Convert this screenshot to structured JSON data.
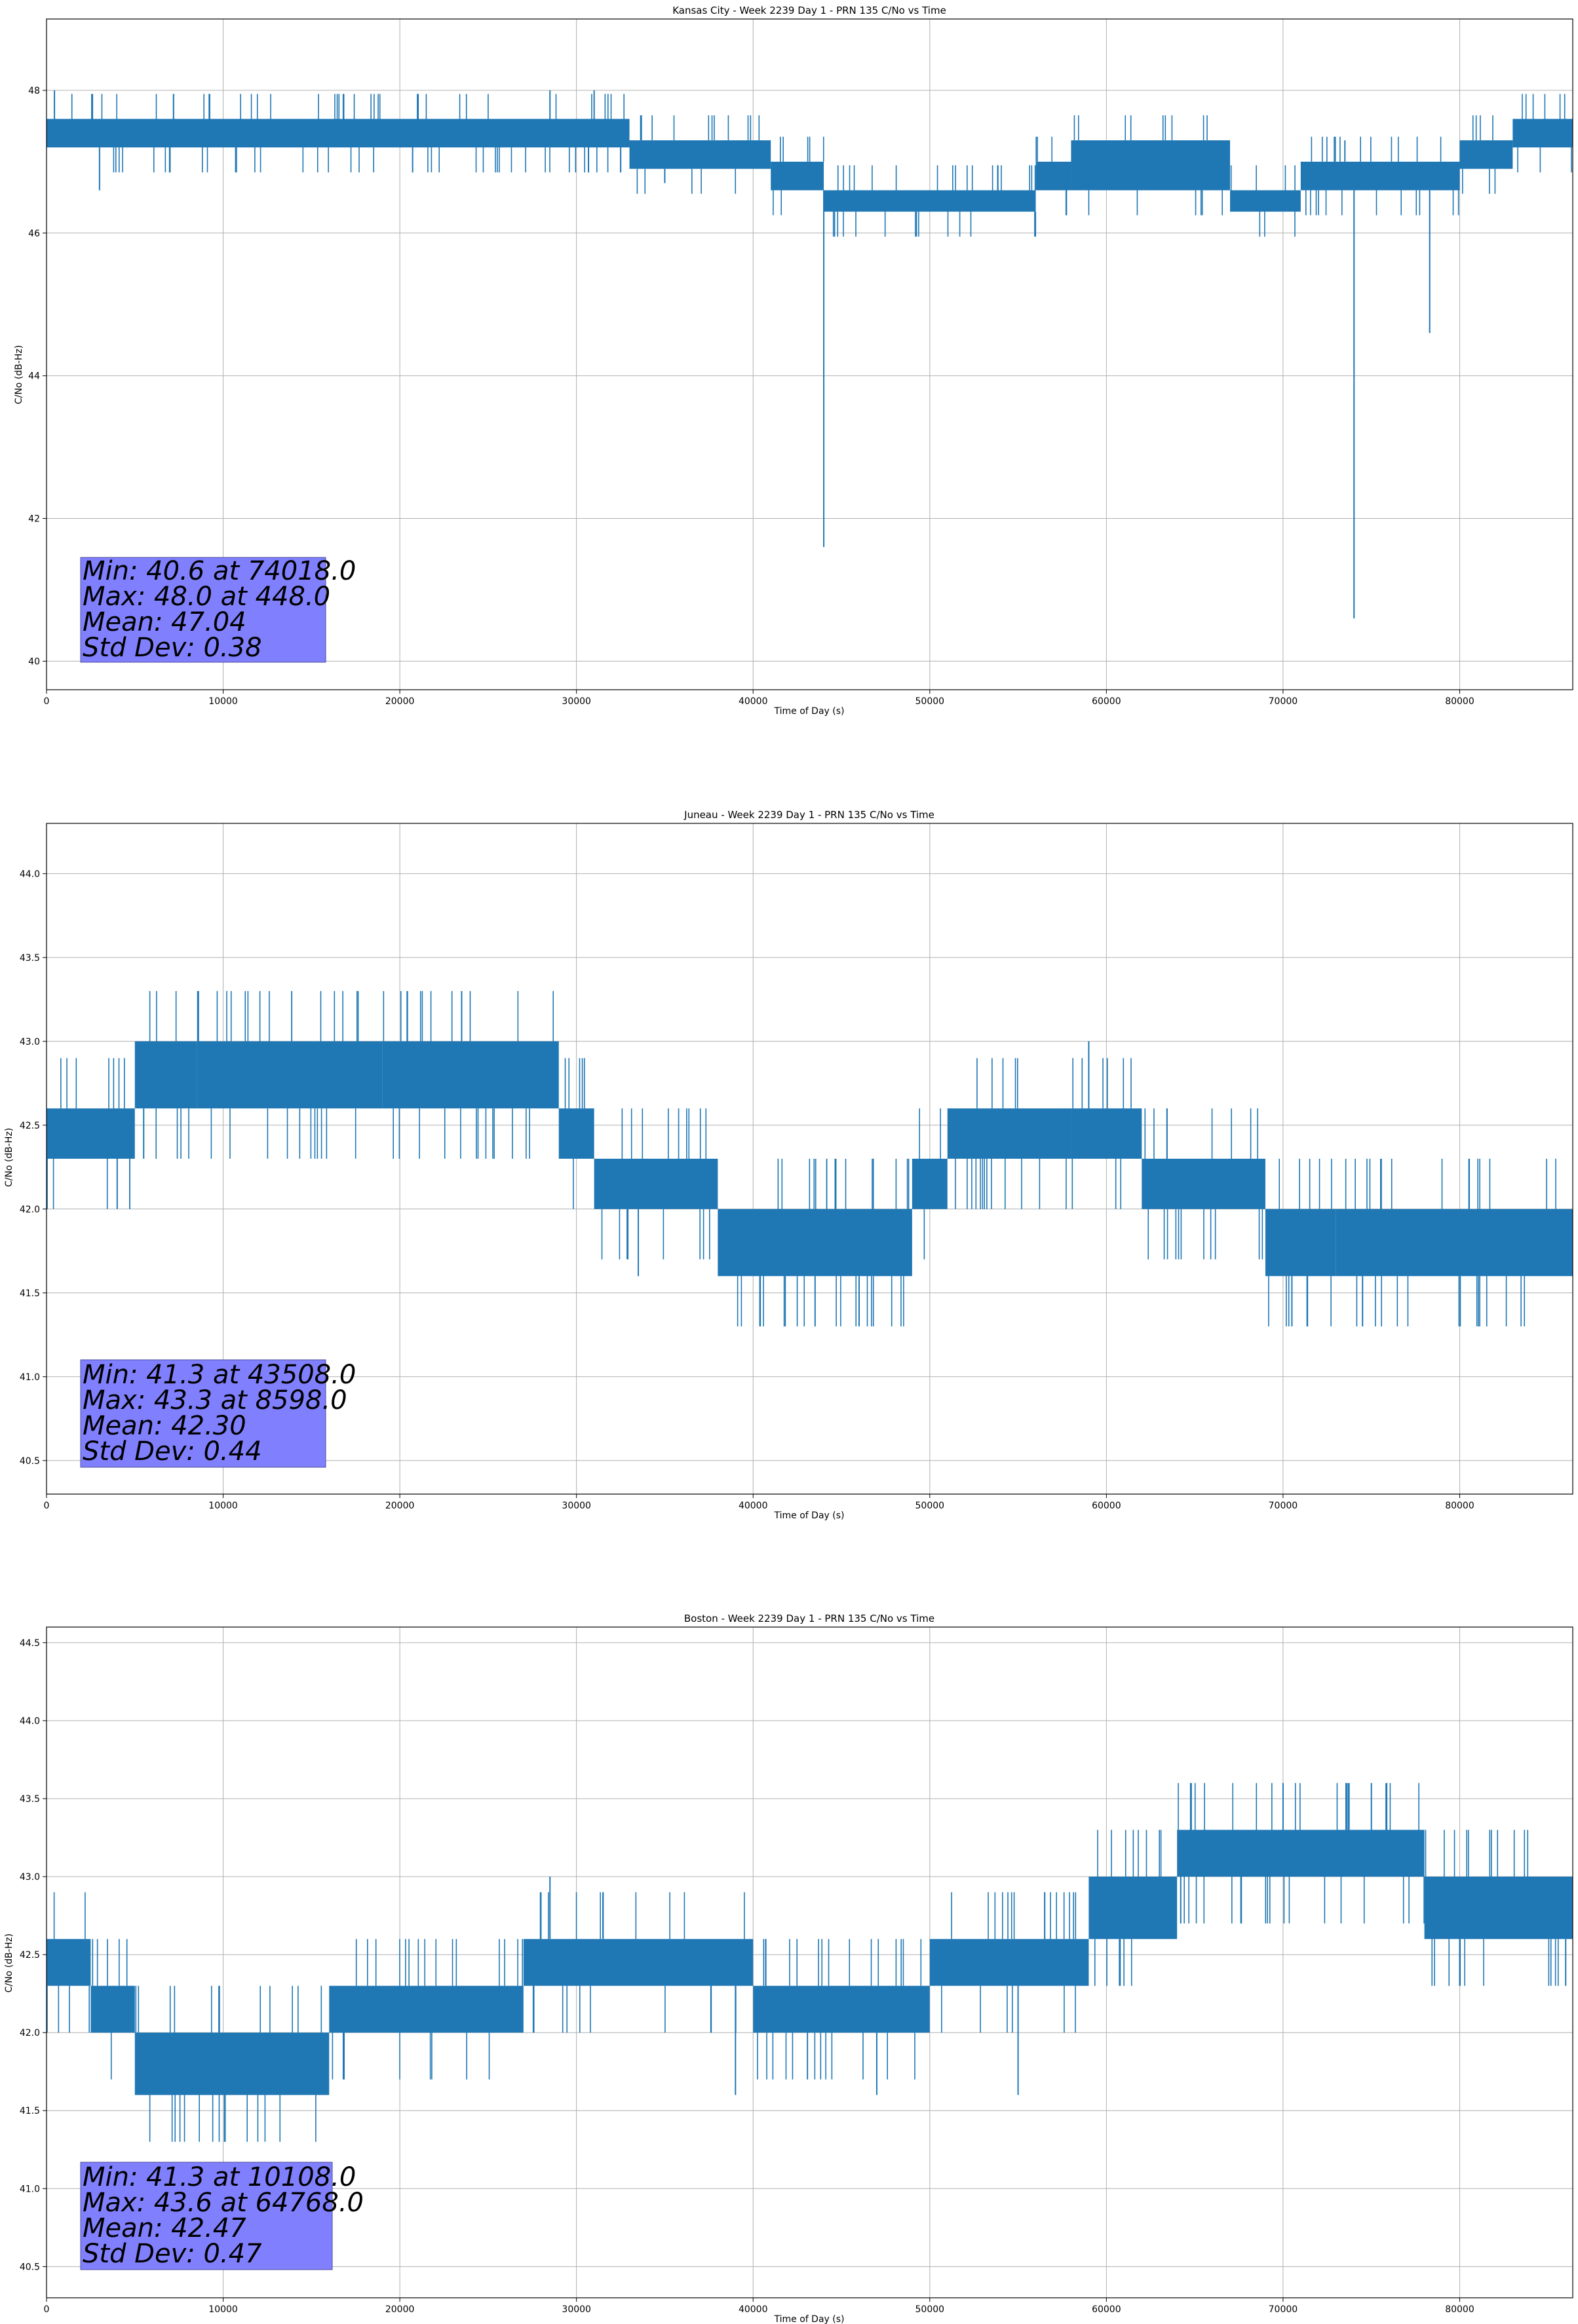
{
  "figure": {
    "background": "#ffffff",
    "line_color": "#1f77b4",
    "grid_color": "#b0b0b0",
    "stats_box_color": "#8080ff"
  },
  "chart_data": [
    {
      "type": "line",
      "title": "Kansas City - Week 2239 Day 1 - PRN 135 C/No vs Time",
      "xlabel": "Time of Day (s)",
      "ylabel": "C/No (dB-Hz)",
      "xlim": [
        0,
        86400
      ],
      "ylim": [
        39.6,
        49.0
      ],
      "xticks": [
        0,
        10000,
        20000,
        30000,
        40000,
        50000,
        60000,
        70000,
        80000
      ],
      "yticks": [
        40,
        42,
        44,
        46,
        48
      ],
      "ytick_decimals": 0,
      "grid": true,
      "step": 0.35,
      "band_segments": [
        [
          0,
          33000,
          47.2,
          47.6
        ],
        [
          33000,
          41000,
          46.9,
          47.3
        ],
        [
          41000,
          44000,
          46.6,
          47.0
        ],
        [
          44000,
          56000,
          46.3,
          46.6
        ],
        [
          56000,
          58000,
          46.6,
          47.0
        ],
        [
          58000,
          67000,
          46.6,
          47.3
        ],
        [
          67000,
          71000,
          46.3,
          46.6
        ],
        [
          71000,
          80000,
          46.6,
          47.0
        ],
        [
          80000,
          83000,
          46.9,
          47.3
        ],
        [
          83000,
          86400,
          47.2,
          47.6
        ]
      ],
      "spikes": [
        [
          448,
          48.0
        ],
        [
          3000,
          46.6
        ],
        [
          28500,
          48.0
        ],
        [
          31000,
          48.0
        ],
        [
          44000,
          41.6
        ],
        [
          74018,
          40.6
        ],
        [
          78300,
          44.6
        ],
        [
          73500,
          47.3
        ],
        [
          35000,
          46.7
        ]
      ],
      "stats": [
        "Min: 40.6 at 74018.0",
        "Max: 48.0 at 448.0",
        "Mean: 47.04",
        "Std Dev: 0.38"
      ]
    },
    {
      "type": "line",
      "title": "Juneau - Week 2239 Day 1 - PRN 135 C/No vs Time",
      "xlabel": "Time of Day (s)",
      "ylabel": "C/No (dB-Hz)",
      "xlim": [
        0,
        86400
      ],
      "ylim": [
        40.3,
        44.3
      ],
      "xticks": [
        0,
        10000,
        20000,
        30000,
        40000,
        50000,
        60000,
        70000,
        80000
      ],
      "yticks": [
        40.5,
        41.0,
        41.5,
        42.0,
        42.5,
        43.0,
        43.5,
        44.0
      ],
      "ytick_decimals": 1,
      "grid": true,
      "step": 0.3,
      "band_segments": [
        [
          0,
          5000,
          42.3,
          42.6
        ],
        [
          5000,
          8500,
          42.6,
          43.0
        ],
        [
          8500,
          19000,
          42.6,
          43.0
        ],
        [
          19000,
          29000,
          42.6,
          43.0
        ],
        [
          29000,
          31000,
          42.3,
          42.6
        ],
        [
          31000,
          38000,
          42.0,
          42.3
        ],
        [
          38000,
          49000,
          41.6,
          42.0
        ],
        [
          49000,
          51000,
          42.0,
          42.3
        ],
        [
          51000,
          58000,
          42.3,
          42.6
        ],
        [
          58000,
          62000,
          42.3,
          42.6
        ],
        [
          62000,
          69000,
          42.0,
          42.3
        ],
        [
          69000,
          73000,
          41.6,
          42.0
        ],
        [
          73000,
          86400,
          41.6,
          42.0
        ]
      ],
      "spikes": [
        [
          43508,
          41.3
        ],
        [
          46000,
          41.3
        ],
        [
          8598,
          43.3
        ],
        [
          23500,
          43.3
        ],
        [
          59000,
          43.0
        ],
        [
          70500,
          41.3
        ],
        [
          74500,
          41.3
        ],
        [
          33500,
          41.6
        ],
        [
          5500,
          42.3
        ],
        [
          4000,
          42.0
        ]
      ],
      "stats": [
        "Min: 41.3 at 43508.0",
        "Max: 43.3 at 8598.0",
        "Mean: 42.30",
        "Std Dev: 0.44"
      ]
    },
    {
      "type": "line",
      "title": "Boston - Week 2239 Day 1 - PRN 135 C/No vs Time",
      "xlabel": "Time of Day (s)",
      "ylabel": "C/No (dB-Hz)",
      "xlim": [
        0,
        86400
      ],
      "ylim": [
        40.3,
        44.6
      ],
      "xticks": [
        0,
        10000,
        20000,
        30000,
        40000,
        50000,
        60000,
        70000,
        80000
      ],
      "yticks": [
        40.5,
        41.0,
        41.5,
        42.0,
        42.5,
        43.0,
        43.5,
        44.0,
        44.5
      ],
      "ytick_decimals": 1,
      "grid": true,
      "step": 0.3,
      "band_segments": [
        [
          0,
          2500,
          42.3,
          42.6
        ],
        [
          2500,
          5000,
          42.0,
          42.3
        ],
        [
          5000,
          16000,
          41.6,
          42.0
        ],
        [
          16000,
          27000,
          42.0,
          42.3
        ],
        [
          27000,
          40000,
          42.3,
          42.6
        ],
        [
          40000,
          50000,
          42.0,
          42.3
        ],
        [
          50000,
          59000,
          42.3,
          42.6
        ],
        [
          59000,
          64000,
          42.6,
          43.0
        ],
        [
          64000,
          78000,
          43.0,
          43.3
        ],
        [
          78000,
          86400,
          42.6,
          43.0
        ]
      ],
      "spikes": [
        [
          10108,
          41.3
        ],
        [
          64768,
          43.6
        ],
        [
          70000,
          43.6
        ],
        [
          75000,
          43.6
        ],
        [
          47000,
          41.6
        ],
        [
          39000,
          41.6
        ],
        [
          55000,
          41.6
        ],
        [
          28500,
          43.0
        ],
        [
          80000,
          42.3
        ],
        [
          86000,
          42.3
        ]
      ],
      "stats": [
        "Min: 41.3 at 10108.0",
        "Max: 43.6 at 64768.0",
        "Mean: 42.47",
        "Std Dev: 0.47"
      ]
    }
  ]
}
